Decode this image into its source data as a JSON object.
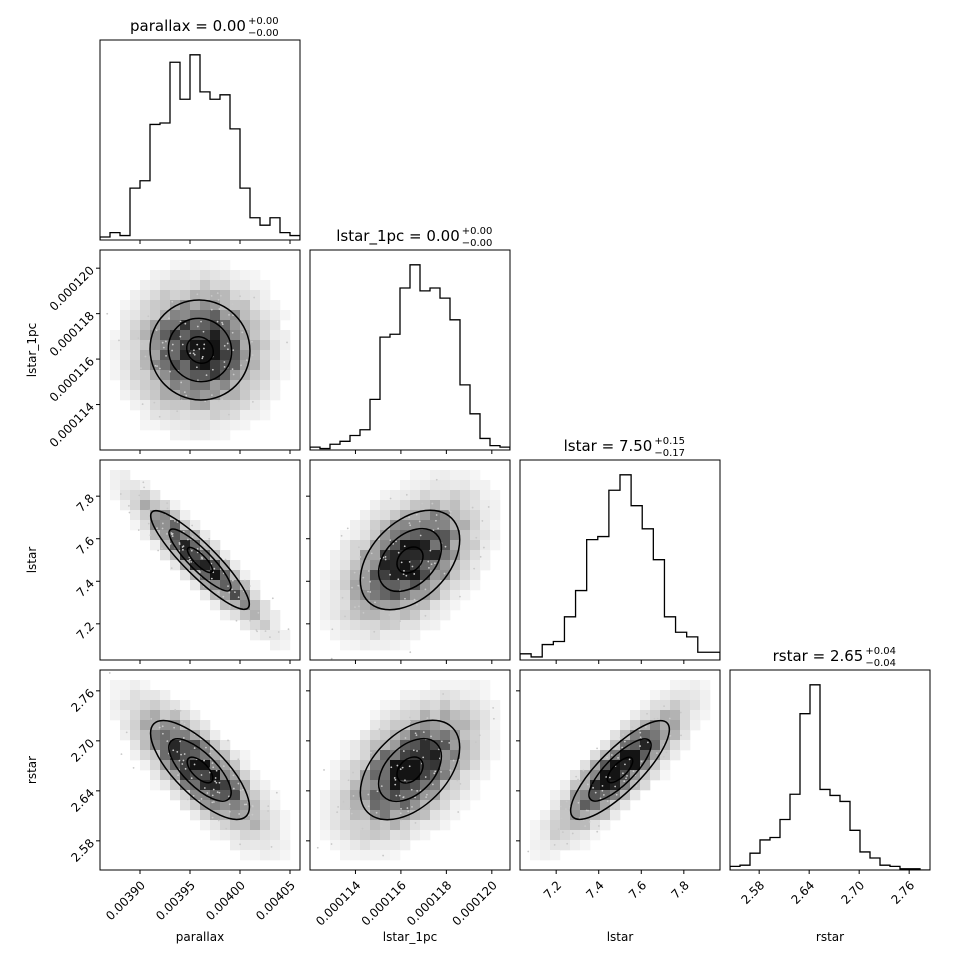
{
  "chart_data": {
    "type": "corner",
    "parameters": [
      "parallax",
      "lstar_1pc",
      "lstar",
      "rstar"
    ],
    "axis_labels": [
      "parallax",
      "lstar_1pc",
      "lstar",
      "rstar"
    ],
    "titles": [
      {
        "name": "parallax",
        "value": "0.00",
        "plus": "+0.00",
        "minus": "−0.00"
      },
      {
        "name": "lstar_1pc",
        "value": "0.00",
        "plus": "+0.00",
        "minus": "−0.00"
      },
      {
        "name": "lstar",
        "value": "7.50",
        "plus": "+0.15",
        "minus": "−0.17"
      },
      {
        "name": "rstar",
        "value": "2.65",
        "plus": "+0.04",
        "minus": "−0.04"
      }
    ],
    "ranges": [
      [
        0.00386,
        0.00406
      ],
      [
        0.000112,
        0.0001208
      ],
      [
        7.03,
        7.97
      ],
      [
        2.545,
        2.785
      ]
    ],
    "ticks": [
      [
        0.0039,
        0.00395,
        0.004,
        0.00405
      ],
      [
        0.000114,
        0.000116,
        0.000118,
        0.00012
      ],
      [
        7.2,
        7.4,
        7.6,
        7.8
      ],
      [
        2.58,
        2.64,
        2.7,
        2.76
      ]
    ],
    "tick_labels": [
      [
        "0.00390",
        "0.00395",
        "0.00400",
        "0.00405"
      ],
      [
        "0.000114",
        "0.000116",
        "0.000118",
        "0.000120"
      ],
      [
        "7.2",
        "7.4",
        "7.6",
        "7.8"
      ],
      [
        "2.58",
        "2.64",
        "2.70",
        "2.76"
      ]
    ],
    "histograms": [
      [
        2,
        5,
        3,
        35,
        40,
        78,
        79,
        120,
        95,
        125,
        100,
        95,
        98,
        75,
        35,
        15,
        10,
        15,
        5,
        3
      ],
      [
        2,
        1,
        4,
        6,
        10,
        14,
        35,
        78,
        80,
        112,
        128,
        110,
        112,
        105,
        90,
        45,
        25,
        8,
        3,
        2
      ],
      [
        4,
        2,
        10,
        12,
        28,
        45,
        78,
        80,
        110,
        120,
        100,
        85,
        65,
        28,
        18,
        15,
        5,
        5
      ],
      [
        3,
        4,
        14,
        25,
        27,
        42,
        63,
        130,
        154,
        67,
        62,
        57,
        33,
        15,
        10,
        4,
        3,
        1,
        1,
        0
      ]
    ],
    "correlations": {
      "1-0": 0.02,
      "2-0": -0.92,
      "2-1": 0.45,
      "3-0": -0.78,
      "3-1": 0.5,
      "3-2": 0.85
    },
    "contour_levels": [
      0.4,
      1.0,
      1.6
    ],
    "show_grid": false
  }
}
